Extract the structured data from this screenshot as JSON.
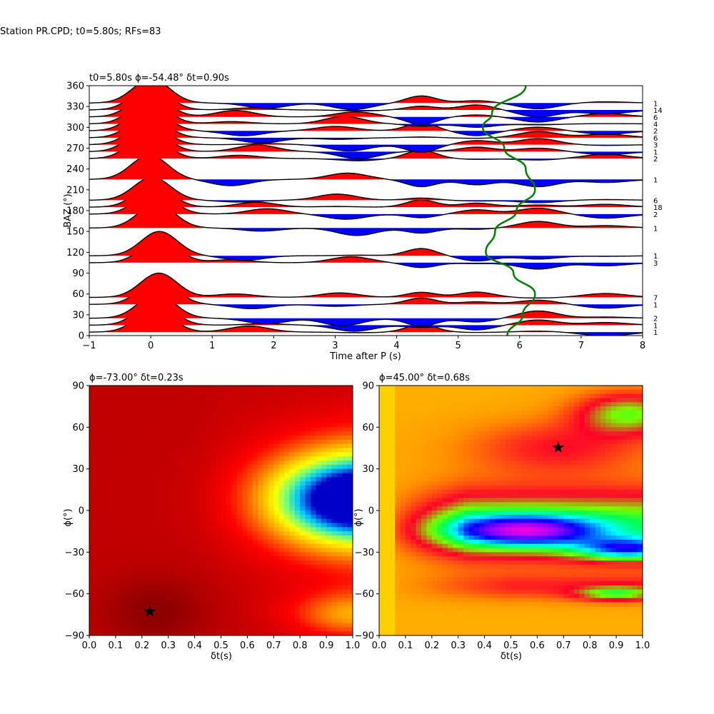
{
  "suptitle": "Station PR.CPD; t0=5.80s; RFs=83",
  "chart_data": [
    {
      "type": "line",
      "title": "t0=5.80s ϕ=-54.48° δt=0.90s",
      "xlabel": "Time after P (s)",
      "ylabel": "BAZ (°)",
      "xlim": [
        -1,
        8
      ],
      "ylim": [
        0,
        360
      ],
      "xticks": [
        "−1",
        "0",
        "1",
        "2",
        "3",
        "4",
        "5",
        "6",
        "7",
        "8"
      ],
      "yticks": [
        "0",
        "30",
        "60",
        "90",
        "120",
        "150",
        "180",
        "210",
        "240",
        "270",
        "300",
        "330",
        "360"
      ],
      "positive_fill": "#ff0000",
      "negative_fill": "#0000ff",
      "traces": [
        {
          "baz": 5,
          "count": "1",
          "peak": 0.9
        },
        {
          "baz": 15,
          "count": "1",
          "peak": 0.95
        },
        {
          "baz": 25,
          "count": "2",
          "peak": 1.0
        },
        {
          "baz": 45,
          "count": "1",
          "peak": 1.0
        },
        {
          "baz": 55,
          "count": "7",
          "peak": 1.0
        },
        {
          "baz": 105,
          "count": "3",
          "peak": 0.95
        },
        {
          "baz": 115,
          "count": "1",
          "peak": 1.0
        },
        {
          "baz": 155,
          "count": "1",
          "peak": 1.0
        },
        {
          "baz": 175,
          "count": "2",
          "peak": 0.95
        },
        {
          "baz": 185,
          "count": "18",
          "peak": 0.9
        },
        {
          "baz": 195,
          "count": "6",
          "peak": 0.95
        },
        {
          "baz": 225,
          "count": "1",
          "peak": 1.0
        },
        {
          "baz": 255,
          "count": "2",
          "peak": 1.0
        },
        {
          "baz": 265,
          "count": "1",
          "peak": 1.0
        },
        {
          "baz": 275,
          "count": "3",
          "peak": 0.9
        },
        {
          "baz": 285,
          "count": "6",
          "peak": 0.9
        },
        {
          "baz": 295,
          "count": "2",
          "peak": 0.95
        },
        {
          "baz": 305,
          "count": "4",
          "peak": 0.95
        },
        {
          "baz": 315,
          "count": "6",
          "peak": 0.95
        },
        {
          "baz": 325,
          "count": "14",
          "peak": 0.95
        },
        {
          "baz": 335,
          "count": "1",
          "peak": 1.0
        }
      ],
      "moveout_curve": {
        "color": "#008000",
        "x_at_baz": [
          [
            5.8,
            0
          ],
          [
            6.05,
            30
          ],
          [
            6.25,
            60
          ],
          [
            5.9,
            90
          ],
          [
            5.45,
            120
          ],
          [
            5.6,
            150
          ],
          [
            5.95,
            180
          ],
          [
            6.25,
            210
          ],
          [
            6.1,
            240
          ],
          [
            5.75,
            270
          ],
          [
            5.4,
            300
          ],
          [
            5.55,
            320
          ],
          [
            6.1,
            360
          ]
        ]
      }
    },
    {
      "type": "heatmap",
      "title": "ϕ=-73.00° δt=0.23s",
      "xlabel": "δt(s)",
      "ylabel": "ϕ(°)",
      "xlim": [
        0,
        1
      ],
      "ylim": [
        -90,
        90
      ],
      "xticks": [
        "0.0",
        "0.1",
        "0.2",
        "0.3",
        "0.4",
        "0.5",
        "0.6",
        "0.7",
        "0.8",
        "0.9",
        "1.0"
      ],
      "yticks": [
        "−90",
        "−60",
        "−30",
        "0",
        "30",
        "60",
        "90"
      ],
      "best": {
        "dt": 0.23,
        "phi": -73
      },
      "colormap": "hot-jet"
    },
    {
      "type": "heatmap",
      "title": "ϕ=45.00° δt=0.68s",
      "xlabel": "δt(s)",
      "ylabel": "ϕ(°)",
      "xlim": [
        0,
        1
      ],
      "ylim": [
        -90,
        90
      ],
      "xticks": [
        "0.0",
        "0.1",
        "0.2",
        "0.3",
        "0.4",
        "0.5",
        "0.6",
        "0.7",
        "0.8",
        "0.9",
        "1.0"
      ],
      "yticks": [
        "−90",
        "−60",
        "−30",
        "0",
        "30",
        "60",
        "90"
      ],
      "best": {
        "dt": 0.68,
        "phi": 45
      },
      "colormap": "hsv"
    }
  ]
}
